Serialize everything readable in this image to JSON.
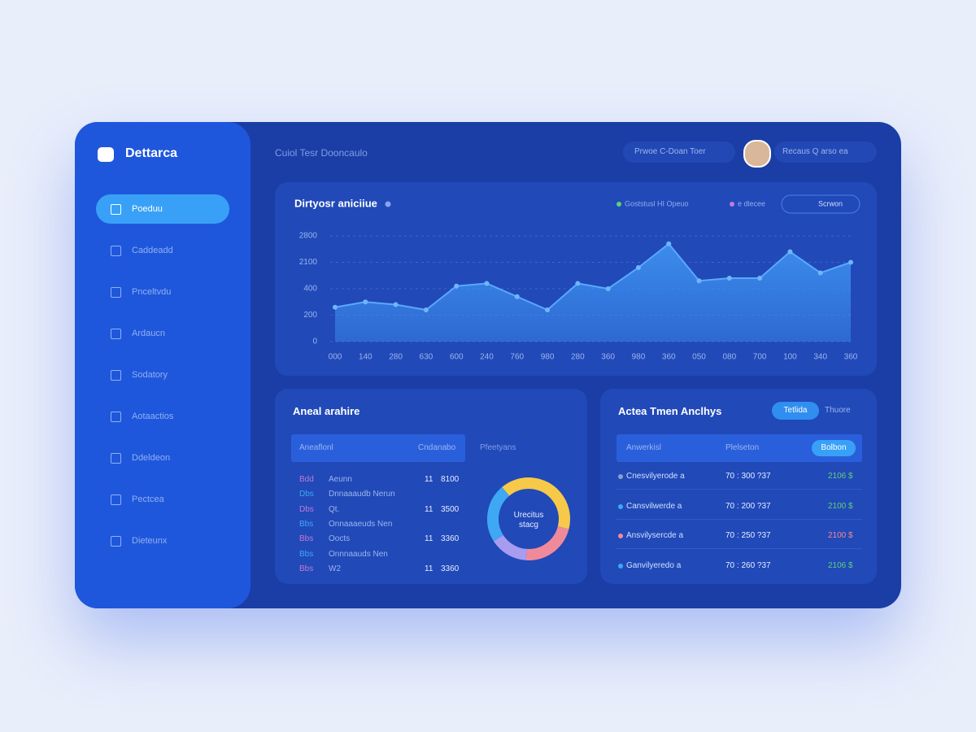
{
  "sidebar": {
    "logo": "Dettarca",
    "nav": [
      "Poeduu",
      "Caddeadd",
      "Pnceltvdu",
      "Ardaucn",
      "Sodatory",
      "Aotaactios",
      "Ddeldeon",
      "Pectcea",
      "Dieteunx"
    ]
  },
  "header": {
    "breadcrumb": "Cuiol Tesr Dooncaulo",
    "search": "Prwoe  C-Doan Toer",
    "user_menu": "Recaus  Q  arso ea"
  },
  "chart_data": {
    "type": "area",
    "title": "Dirtyosr aniciiue",
    "legend": [
      "Goststusl HI Opeuo",
      "e dlecee"
    ],
    "button": "Scrwon",
    "color": "#3d8ff0",
    "x": [
      "000",
      "140",
      "280",
      "630",
      "600",
      "240",
      "760",
      "980",
      "280",
      "360",
      "980",
      "360",
      "050",
      "080",
      "700",
      "100",
      "340",
      "360"
    ],
    "values": [
      1.3,
      1.5,
      1.4,
      1.2,
      2.1,
      2.2,
      1.7,
      1.2,
      2.2,
      2.0,
      2.8,
      3.7,
      2.3,
      2.4,
      2.4,
      3.4,
      2.6,
      3.0
    ],
    "ylim": [
      0,
      4
    ],
    "yticks": [
      0,
      1,
      2,
      3,
      4
    ],
    "ytick_labels": [
      "0",
      "200",
      "400",
      "2100",
      "2800"
    ],
    "grid": true
  },
  "annual": {
    "title": "Aneal arahire",
    "columns": [
      "Aneaflonl",
      "Cndanabo",
      "Pfeetyans"
    ],
    "rows": [
      [
        "Bdd",
        "Aeunn",
        "11",
        "8100"
      ],
      [
        "Dbs",
        "Dnnaaaudb Nerun",
        "",
        ""
      ],
      [
        "Dbs",
        "Qt.",
        "11",
        "3500"
      ],
      [
        "Bbs",
        "Onnaaaeuds Nen",
        "",
        ""
      ],
      [
        "Bbs",
        "Oocts",
        "11",
        "3360"
      ],
      [
        "Bbs",
        "Onnnaauds Nen",
        "",
        ""
      ],
      [
        "Bbs",
        "W2",
        "11",
        "3360"
      ]
    ],
    "donut": {
      "label": "Urecitus stacg",
      "segments": [
        {
          "value": 40,
          "color": "#f7c948"
        },
        {
          "value": 22,
          "color": "#f08a9a"
        },
        {
          "value": 15,
          "color": "#a79cf0"
        },
        {
          "value": 23,
          "color": "#3ea8f5"
        }
      ]
    }
  },
  "trend": {
    "title": "Actea Tmen Anclhys",
    "tabs": [
      "Tetlida",
      "Thuore"
    ],
    "columns": [
      "Anwerkisl",
      "Plelseton",
      "Bolbon"
    ],
    "rows": [
      {
        "dot": "#8aa0c8",
        "name": "Cnesvilyerode a",
        "time": "70 : 300 ?37",
        "value": "2106 $"
      },
      {
        "dot": "#3ea8f5",
        "name": "Cansvilwerde a",
        "time": "70 : 200 ?37",
        "value": "2100 $"
      },
      {
        "dot": "#f08a9a",
        "name": "Ansvilysercde a",
        "time": "70 : 250 ?37",
        "value": "2100 $"
      },
      {
        "dot": "#3ea8f5",
        "name": "Ganvilyeredo a",
        "time": "70 : 260 ?37",
        "value": "2106 $"
      }
    ]
  }
}
